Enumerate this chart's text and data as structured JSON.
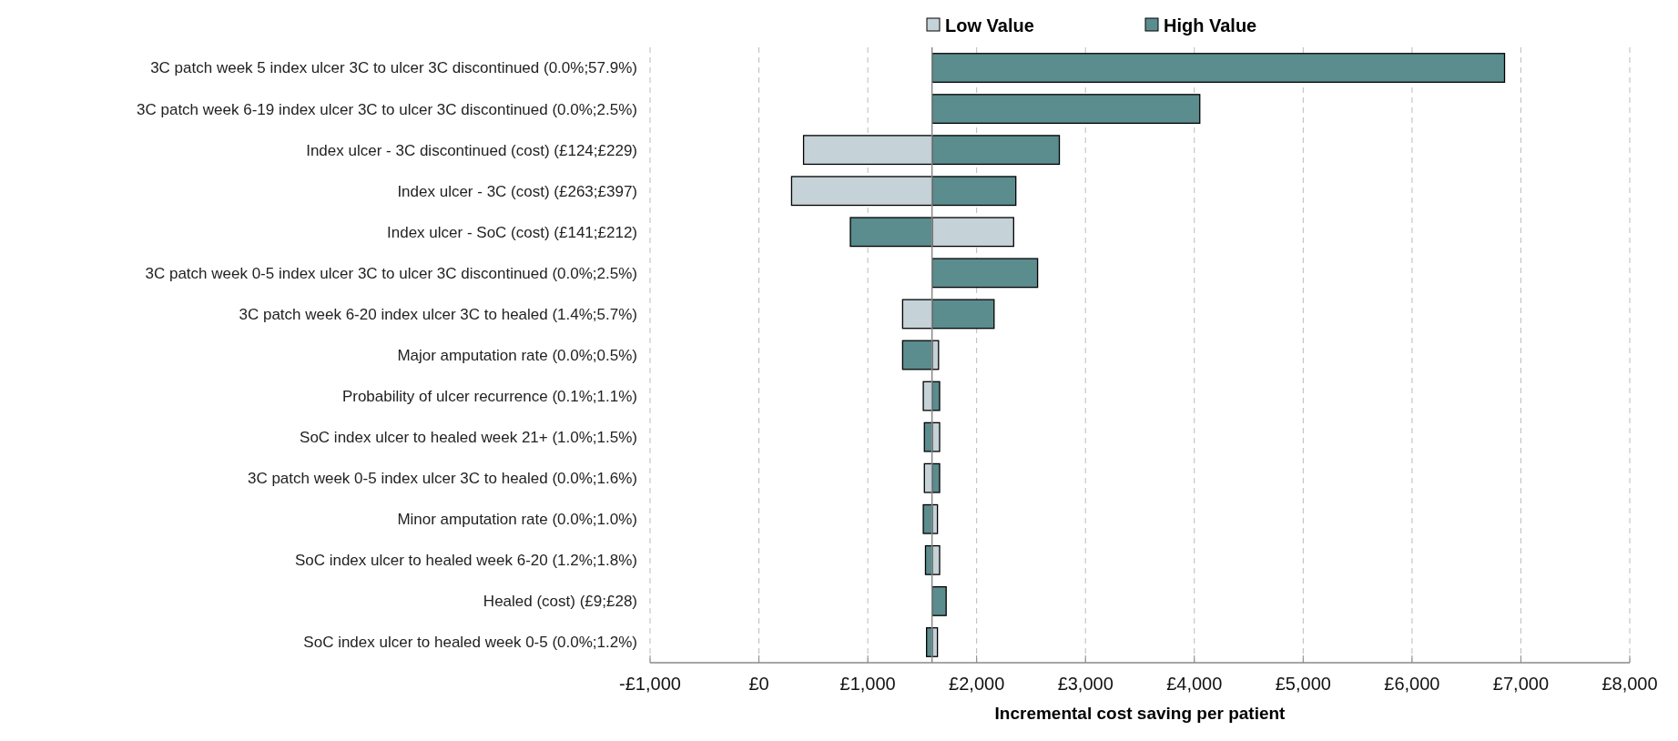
{
  "chart_data": {
    "type": "bar",
    "orientation": "horizontal",
    "xlabel": "Incremental cost saving per patient",
    "categories": [
      "3C patch week 5 index ulcer 3C to ulcer 3C discontinued (0.0%;57.9%)",
      "3C patch week 6-19 index ulcer 3C to ulcer 3C discontinued (0.0%;2.5%)",
      "Index ulcer - 3C discontinued (cost) (£124;£229)",
      "Index ulcer - 3C (cost) (£263;£397)",
      "Index ulcer - SoC (cost) (£141;£212)",
      "3C patch week 0-5 index ulcer 3C to ulcer 3C discontinued (0.0%;2.5%)",
      "3C patch week 6-20 index ulcer 3C to healed (1.4%;5.7%)",
      "Major amputation rate (0.0%;0.5%)",
      "Probability of ulcer recurrence (0.1%;1.1%)",
      "SoC index ulcer to healed week 21+ (1.0%;1.5%)",
      "3C patch week 0-5 index ulcer 3C to healed (0.0%;1.6%)",
      "Minor amputation rate (0.0%;1.0%)",
      "SoC index ulcer to healed week 6-20 (1.2%;1.8%)",
      "Healed (cost) (£9;£28)",
      "SoC index ulcer to healed week 0-5 (0.0%;1.2%)"
    ],
    "series": [
      {
        "name": "Low Value",
        "color": "#c5d2d8",
        "base": [
          null,
          null,
          1590,
          1590,
          1590,
          null,
          1590,
          1590,
          1590,
          1590,
          1590,
          1590,
          1590,
          null,
          1590
        ],
        "values": [
          null,
          null,
          -1180,
          -1290,
          750,
          null,
          -270,
          60,
          -80,
          70,
          -70,
          50,
          70,
          null,
          50
        ]
      },
      {
        "name": "High Value",
        "color": "#5b8c8e",
        "base": [
          1590,
          1590,
          1590,
          1590,
          1590,
          1590,
          1590,
          1590,
          1590,
          1590,
          1590,
          1590,
          1590,
          1590,
          1590
        ],
        "values": [
          5260,
          2460,
          1170,
          770,
          -750,
          970,
          570,
          -270,
          70,
          -70,
          70,
          -80,
          -60,
          130,
          -50
        ]
      }
    ],
    "xlim": [
      -1000,
      8000
    ],
    "xticks": [
      {
        "value": -1000,
        "label": "-£1,000"
      },
      {
        "value": 0,
        "label": "£0"
      },
      {
        "value": 1000,
        "label": "£1,000"
      },
      {
        "value": 2000,
        "label": "£2,000"
      },
      {
        "value": 3000,
        "label": "£3,000"
      },
      {
        "value": 4000,
        "label": "£4,000"
      },
      {
        "value": 5000,
        "label": "£5,000"
      },
      {
        "value": 6000,
        "label": "£6,000"
      },
      {
        "value": 7000,
        "label": "£7,000"
      },
      {
        "value": 8000,
        "label": "£8,000"
      }
    ],
    "ref_lines": [
      {
        "axis": "x",
        "value": 1590,
        "color": "#888888"
      }
    ],
    "grid": "x",
    "legend": "top"
  }
}
